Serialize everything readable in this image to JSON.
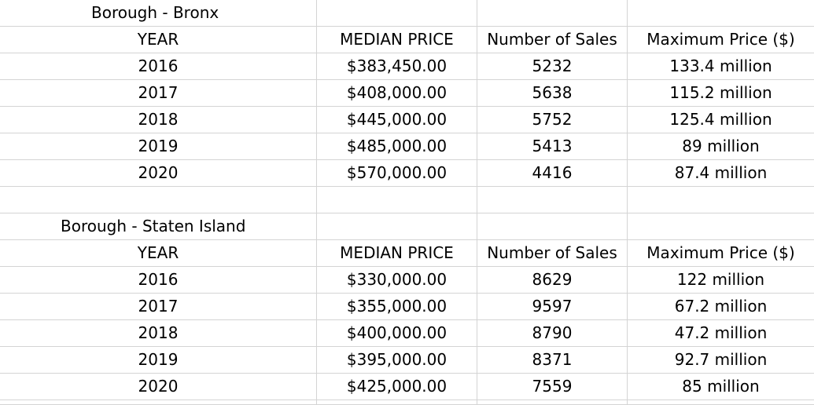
{
  "tables": [
    {
      "title": "Borough - Bronx",
      "headers": [
        "YEAR",
        "MEDIAN PRICE",
        "Number of Sales",
        "Maximum Price ($)"
      ],
      "rows": [
        [
          "2016",
          "$383,450.00",
          "5232",
          "133.4 million"
        ],
        [
          "2017",
          "$408,000.00",
          "5638",
          "115.2 million"
        ],
        [
          "2018",
          "$445,000.00",
          "5752",
          "125.4 million"
        ],
        [
          "2019",
          "$485,000.00",
          "5413",
          "89 million"
        ],
        [
          "2020",
          "$570,000.00",
          "4416",
          "87.4 million"
        ]
      ]
    },
    {
      "title": "Borough - Staten Island",
      "headers": [
        "YEAR",
        "MEDIAN PRICE",
        "Number of Sales",
        "Maximum Price ($)"
      ],
      "rows": [
        [
          "2016",
          "$330,000.00",
          "8629",
          "122 million"
        ],
        [
          "2017",
          "$355,000.00",
          "9597",
          "67.2 million"
        ],
        [
          "2018",
          "$400,000.00",
          "8790",
          "47.2 million"
        ],
        [
          "2019",
          "$395,000.00",
          "8371",
          "92.7 million"
        ],
        [
          "2020",
          "$425,000.00",
          "7559",
          "85 million"
        ]
      ]
    }
  ]
}
